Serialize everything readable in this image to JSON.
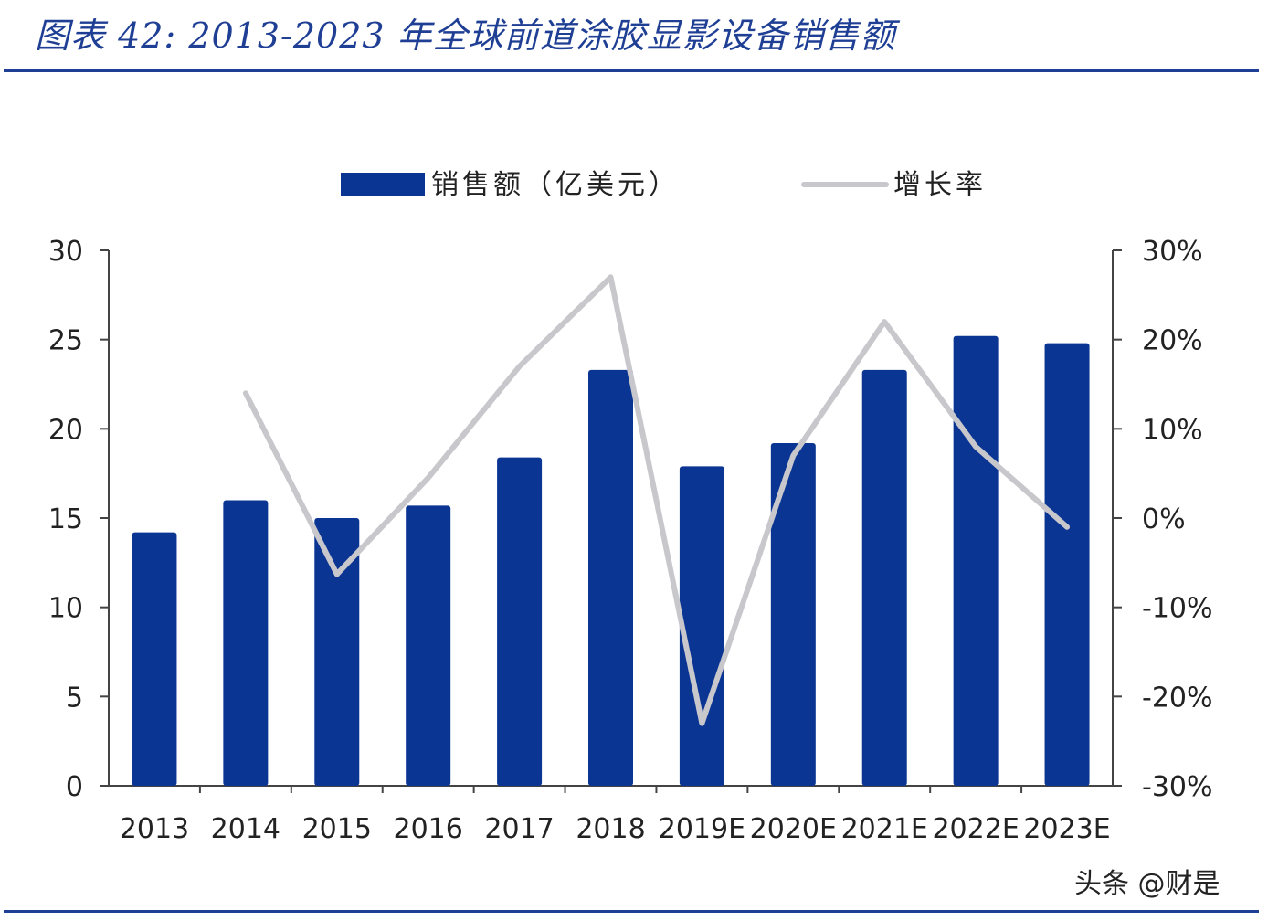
{
  "figure_title": "图表 42:  2013-2023 年全球前道涂胶显影设备销售额",
  "watermark": "头条 @财是",
  "colors": {
    "bar": "#0a3593",
    "line": "#c7c7cc",
    "title": "#1f3f95",
    "axis": "#444444"
  },
  "chart_data": {
    "type": "bar",
    "categories": [
      "2013",
      "2014",
      "2015",
      "2016",
      "2017",
      "2018",
      "2019E",
      "2020E",
      "2021E",
      "2022E",
      "2023E"
    ],
    "series": [
      {
        "name": "销售额（亿美元）",
        "type": "bar",
        "axis": "left",
        "values": [
          14.2,
          16.0,
          15.0,
          15.7,
          18.4,
          23.3,
          17.9,
          19.2,
          23.3,
          25.2,
          24.8
        ]
      },
      {
        "name": "增长率",
        "type": "line",
        "axis": "right",
        "values": [
          null,
          14,
          -6.3,
          4.5,
          17,
          27,
          -23,
          7,
          22,
          8,
          -1
        ]
      }
    ],
    "y_left": {
      "ylim": [
        0,
        30
      ],
      "ticks": [
        0,
        5,
        10,
        15,
        20,
        25,
        30
      ],
      "tick_labels": [
        "0",
        "5",
        "10",
        "15",
        "20",
        "25",
        "30"
      ]
    },
    "y_right": {
      "ylim": [
        -30,
        30
      ],
      "ticks": [
        -30,
        -20,
        -10,
        0,
        10,
        20,
        30
      ],
      "tick_labels": [
        "-30%",
        "-20%",
        "-10%",
        "0%",
        "10%",
        "20%",
        "30%"
      ]
    },
    "legend": {
      "position": "top-center",
      "entries": [
        "销售额（亿美元）",
        "增长率"
      ]
    },
    "grid": false
  }
}
